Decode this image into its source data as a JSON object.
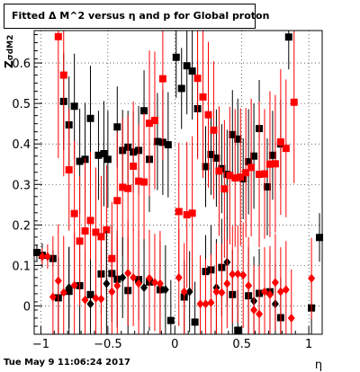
{
  "chart_data": {
    "type": "scatter",
    "title": "Fitted Δ M^2 versus η and p for Global proton",
    "xlabel": "η",
    "ylabel": "σdM2",
    "ylabel_prefix": "Z",
    "xlim": [
      -1.05,
      1.1
    ],
    "ylim": [
      -0.07,
      0.68
    ],
    "xticks": [
      {
        "value": -1.0,
        "label": "−1"
      },
      {
        "value": -0.5,
        "label": "−0.5"
      },
      {
        "value": 0.0,
        "label": "0"
      },
      {
        "value": 0.5,
        "label": "0.5"
      },
      {
        "value": 1.0,
        "label": "1"
      }
    ],
    "yticks": [
      {
        "value": 0.0,
        "label": "0"
      },
      {
        "value": 0.1,
        "label": "0.1"
      },
      {
        "value": 0.2,
        "label": "0.2"
      },
      {
        "value": 0.3,
        "label": "0.3"
      },
      {
        "value": 0.4,
        "label": "0.4"
      },
      {
        "value": 0.5,
        "label": "0.5"
      },
      {
        "value": 0.6,
        "label": "0.6"
      }
    ],
    "grid": true,
    "series": [
      {
        "color": "#000000",
        "marker": "square",
        "points": [
          {
            "x": -0.83,
            "y": 0.505,
            "err": 0.12
          },
          {
            "x": -0.79,
            "y": 0.447,
            "err": 0.12
          },
          {
            "x": -0.75,
            "y": 0.493,
            "err": 0.13
          },
          {
            "x": -0.71,
            "y": 0.357,
            "err": 0.13
          },
          {
            "x": -0.67,
            "y": 0.362,
            "err": 0.14
          },
          {
            "x": -0.63,
            "y": 0.463,
            "err": 0.13
          },
          {
            "x": -0.57,
            "y": 0.372,
            "err": 0.11
          },
          {
            "x": -0.53,
            "y": 0.376,
            "err": 0.13
          },
          {
            "x": -0.5,
            "y": 0.362,
            "err": 0.12
          },
          {
            "x": -0.43,
            "y": 0.442,
            "err": 0.1
          },
          {
            "x": -0.39,
            "y": 0.384,
            "err": 0.1
          },
          {
            "x": -0.35,
            "y": 0.392,
            "err": 0.09
          },
          {
            "x": -0.31,
            "y": 0.38,
            "err": 0.1
          },
          {
            "x": -0.27,
            "y": 0.384,
            "err": 0.11
          },
          {
            "x": -0.23,
            "y": 0.482,
            "err": 0.1
          },
          {
            "x": -0.19,
            "y": 0.362,
            "err": 0.13
          },
          {
            "x": -0.13,
            "y": 0.406,
            "err": 0.12
          },
          {
            "x": -0.09,
            "y": 0.404,
            "err": 0.13
          },
          {
            "x": -0.05,
            "y": 0.398,
            "err": 0.13
          },
          {
            "x": 0.01,
            "y": 0.614,
            "err": 0.1
          },
          {
            "x": 0.05,
            "y": 0.537,
            "err": 0.1
          },
          {
            "x": 0.09,
            "y": 0.593,
            "err": 0.12
          },
          {
            "x": 0.13,
            "y": 0.58,
            "err": 0.12
          },
          {
            "x": 0.17,
            "y": 0.487,
            "err": 0.12
          },
          {
            "x": 0.23,
            "y": 0.344,
            "err": 0.1
          },
          {
            "x": 0.27,
            "y": 0.374,
            "err": 0.1
          },
          {
            "x": 0.31,
            "y": 0.365,
            "err": 0.12
          },
          {
            "x": 0.35,
            "y": 0.339,
            "err": 0.11
          },
          {
            "x": 0.39,
            "y": 0.325,
            "err": 0.11
          },
          {
            "x": 0.43,
            "y": 0.423,
            "err": 0.11
          },
          {
            "x": 0.47,
            "y": 0.412,
            "err": 0.1
          },
          {
            "x": 0.51,
            "y": 0.314,
            "err": 0.1
          },
          {
            "x": 0.55,
            "y": 0.356,
            "err": 0.13
          },
          {
            "x": 0.59,
            "y": 0.37,
            "err": 0.13
          },
          {
            "x": 0.63,
            "y": 0.438,
            "err": 0.12
          },
          {
            "x": 0.69,
            "y": 0.294,
            "err": 0.12
          },
          {
            "x": 0.73,
            "y": 0.372,
            "err": 0.11
          },
          {
            "x": 0.79,
            "y": 0.4,
            "err": 0.11
          },
          {
            "x": 0.85,
            "y": 0.664,
            "err": 0.08
          },
          {
            "x": -1.03,
            "y": 0.132,
            "err": 0.02
          },
          {
            "x": -0.99,
            "y": 0.125,
            "err": 0.03
          },
          {
            "x": -0.91,
            "y": 0.117,
            "err": 0.02
          },
          {
            "x": -0.87,
            "y": 0.02,
            "err": 0.1
          },
          {
            "x": -0.79,
            "y": 0.036,
            "err": 0.11
          },
          {
            "x": -0.71,
            "y": 0.05,
            "err": 0.12
          },
          {
            "x": -0.63,
            "y": 0.028,
            "err": 0.14
          },
          {
            "x": -0.55,
            "y": 0.079,
            "err": 0.1
          },
          {
            "x": -0.47,
            "y": 0.08,
            "err": 0.12
          },
          {
            "x": -0.43,
            "y": 0.066,
            "err": 0.12
          },
          {
            "x": -0.35,
            "y": 0.038,
            "err": 0.13
          },
          {
            "x": -0.27,
            "y": 0.065,
            "err": 0.1
          },
          {
            "x": -0.19,
            "y": 0.059,
            "err": 0.12
          },
          {
            "x": -0.11,
            "y": 0.04,
            "err": 0.12
          },
          {
            "x": -0.03,
            "y": -0.036,
            "err": 0.1
          },
          {
            "x": 0.07,
            "y": 0.022,
            "err": 0.09
          },
          {
            "x": 0.15,
            "y": -0.04,
            "err": 0.1
          },
          {
            "x": 0.23,
            "y": 0.085,
            "err": 0.09
          },
          {
            "x": 0.27,
            "y": 0.089,
            "err": 0.11
          },
          {
            "x": 0.35,
            "y": 0.095,
            "err": 0.12
          },
          {
            "x": 0.43,
            "y": 0.028,
            "err": 0.11
          },
          {
            "x": 0.47,
            "y": -0.06,
            "err": 0.1
          },
          {
            "x": 0.55,
            "y": 0.025,
            "err": 0.12
          },
          {
            "x": 0.63,
            "y": 0.031,
            "err": 0.11
          },
          {
            "x": 0.71,
            "y": 0.035,
            "err": 0.1
          },
          {
            "x": 0.79,
            "y": -0.029,
            "err": 0.1
          },
          {
            "x": 1.02,
            "y": -0.005,
            "err": 0.08
          },
          {
            "x": 1.08,
            "y": 0.169,
            "err": 0.06
          }
        ]
      },
      {
        "color": "#ff0000",
        "marker": "square",
        "points": [
          {
            "x": -0.87,
            "y": 0.665,
            "err": 0.3
          },
          {
            "x": -0.83,
            "y": 0.57,
            "err": 0.25
          },
          {
            "x": -0.79,
            "y": 0.336,
            "err": 0.15
          },
          {
            "x": -0.75,
            "y": 0.228,
            "err": 0.18
          },
          {
            "x": -0.71,
            "y": 0.16,
            "err": 0.16
          },
          {
            "x": -0.67,
            "y": 0.185,
            "err": 0.18
          },
          {
            "x": -0.63,
            "y": 0.211,
            "err": 0.17
          },
          {
            "x": -0.59,
            "y": 0.182,
            "err": 0.16
          },
          {
            "x": -0.55,
            "y": 0.171,
            "err": 0.15
          },
          {
            "x": -0.51,
            "y": 0.188,
            "err": 0.16
          },
          {
            "x": -0.47,
            "y": 0.117,
            "err": 0.14
          },
          {
            "x": -0.43,
            "y": 0.26,
            "err": 0.17
          },
          {
            "x": -0.39,
            "y": 0.293,
            "err": 0.17
          },
          {
            "x": -0.35,
            "y": 0.29,
            "err": 0.18
          },
          {
            "x": -0.31,
            "y": 0.345,
            "err": 0.16
          },
          {
            "x": -0.27,
            "y": 0.308,
            "err": 0.14
          },
          {
            "x": -0.23,
            "y": 0.306,
            "err": 0.17
          },
          {
            "x": -0.19,
            "y": 0.451,
            "err": 0.18
          },
          {
            "x": -0.15,
            "y": 0.458,
            "err": 0.17
          },
          {
            "x": -0.09,
            "y": 0.561,
            "err": 0.2
          },
          {
            "x": 0.03,
            "y": 0.233,
            "err": 0.17
          },
          {
            "x": 0.09,
            "y": 0.225,
            "err": 0.18
          },
          {
            "x": 0.13,
            "y": 0.229,
            "err": 0.19
          },
          {
            "x": 0.17,
            "y": 0.562,
            "err": 0.2
          },
          {
            "x": 0.21,
            "y": 0.516,
            "err": 0.2
          },
          {
            "x": 0.25,
            "y": 0.472,
            "err": 0.18
          },
          {
            "x": 0.29,
            "y": 0.434,
            "err": 0.17
          },
          {
            "x": 0.33,
            "y": 0.333,
            "err": 0.16
          },
          {
            "x": 0.37,
            "y": 0.289,
            "err": 0.17
          },
          {
            "x": 0.41,
            "y": 0.322,
            "err": 0.17
          },
          {
            "x": 0.45,
            "y": 0.316,
            "err": 0.17
          },
          {
            "x": 0.49,
            "y": 0.318,
            "err": 0.17
          },
          {
            "x": 0.53,
            "y": 0.329,
            "err": 0.16
          },
          {
            "x": 0.57,
            "y": 0.342,
            "err": 0.17
          },
          {
            "x": 0.63,
            "y": 0.325,
            "err": 0.18
          },
          {
            "x": 0.67,
            "y": 0.326,
            "err": 0.16
          },
          {
            "x": 0.71,
            "y": 0.35,
            "err": 0.18
          },
          {
            "x": 0.75,
            "y": 0.351,
            "err": 0.17
          },
          {
            "x": 0.79,
            "y": 0.405,
            "err": 0.18
          },
          {
            "x": 0.83,
            "y": 0.389,
            "err": 0.17
          },
          {
            "x": 0.89,
            "y": 0.503,
            "err": 0.2
          }
        ]
      },
      {
        "color": "#000000",
        "marker": "diamond",
        "points": [
          {
            "x": -0.79,
            "y": 0.045,
            "err": 0.1
          },
          {
            "x": -0.63,
            "y": 0.005,
            "err": 0.11
          },
          {
            "x": -0.51,
            "y": 0.055,
            "err": 0.13
          },
          {
            "x": -0.39,
            "y": 0.07,
            "err": 0.1
          },
          {
            "x": -0.23,
            "y": 0.045,
            "err": 0.12
          },
          {
            "x": -0.07,
            "y": 0.04,
            "err": 0.11
          },
          {
            "x": 0.11,
            "y": 0.035,
            "err": 0.1
          },
          {
            "x": 0.31,
            "y": 0.045,
            "err": 0.12
          },
          {
            "x": 0.39,
            "y": 0.108,
            "err": 0.11
          },
          {
            "x": 0.59,
            "y": 0.012,
            "err": 0.11
          },
          {
            "x": 0.75,
            "y": 0.005,
            "err": 0.1
          }
        ]
      },
      {
        "color": "#ff0000",
        "marker": "diamond",
        "points": [
          {
            "x": -0.99,
            "y": 0.122,
            "err": 0.02
          },
          {
            "x": -0.95,
            "y": 0.122,
            "err": 0.03
          },
          {
            "x": -0.91,
            "y": 0.022,
            "err": 0.15
          },
          {
            "x": -0.87,
            "y": 0.062,
            "err": 0.14
          },
          {
            "x": -0.83,
            "y": 0.033,
            "err": 0.14
          },
          {
            "x": -0.75,
            "y": 0.051,
            "err": 0.13
          },
          {
            "x": -0.67,
            "y": 0.015,
            "err": 0.12
          },
          {
            "x": -0.59,
            "y": 0.019,
            "err": 0.11
          },
          {
            "x": -0.55,
            "y": 0.017,
            "err": 0.12
          },
          {
            "x": -0.47,
            "y": 0.035,
            "err": 0.13
          },
          {
            "x": -0.43,
            "y": 0.05,
            "err": 0.12
          },
          {
            "x": -0.35,
            "y": 0.081,
            "err": 0.13
          },
          {
            "x": -0.31,
            "y": 0.07,
            "err": 0.12
          },
          {
            "x": -0.27,
            "y": 0.055,
            "err": 0.13
          },
          {
            "x": -0.19,
            "y": 0.068,
            "err": 0.12
          },
          {
            "x": -0.15,
            "y": 0.058,
            "err": 0.12
          },
          {
            "x": -0.11,
            "y": 0.055,
            "err": 0.13
          },
          {
            "x": 0.03,
            "y": 0.07,
            "err": 0.12
          },
          {
            "x": 0.07,
            "y": 0.035,
            "err": 0.12
          },
          {
            "x": 0.19,
            "y": 0.005,
            "err": 0.12
          },
          {
            "x": 0.23,
            "y": 0.005,
            "err": 0.11
          },
          {
            "x": 0.27,
            "y": 0.008,
            "err": 0.12
          },
          {
            "x": 0.31,
            "y": 0.035,
            "err": 0.12
          },
          {
            "x": 0.35,
            "y": 0.033,
            "err": 0.12
          },
          {
            "x": 0.39,
            "y": 0.055,
            "err": 0.11
          },
          {
            "x": 0.43,
            "y": 0.078,
            "err": 0.12
          },
          {
            "x": 0.47,
            "y": 0.079,
            "err": 0.12
          },
          {
            "x": 0.51,
            "y": 0.076,
            "err": 0.13
          },
          {
            "x": 0.55,
            "y": 0.05,
            "err": 0.12
          },
          {
            "x": 0.59,
            "y": -0.01,
            "err": 0.11
          },
          {
            "x": 0.63,
            "y": -0.02,
            "err": 0.12
          },
          {
            "x": 0.67,
            "y": 0.035,
            "err": 0.11
          },
          {
            "x": 0.71,
            "y": 0.028,
            "err": 0.12
          },
          {
            "x": 0.75,
            "y": 0.058,
            "err": 0.12
          },
          {
            "x": 0.79,
            "y": 0.035,
            "err": 0.11
          },
          {
            "x": 0.83,
            "y": 0.04,
            "err": 0.12
          },
          {
            "x": 0.87,
            "y": -0.03,
            "err": 0.12
          },
          {
            "x": 1.02,
            "y": 0.068,
            "err": 0.1
          }
        ]
      }
    ]
  },
  "footer": {
    "timestamp": "Tue May  9 11:06:24 2017"
  }
}
